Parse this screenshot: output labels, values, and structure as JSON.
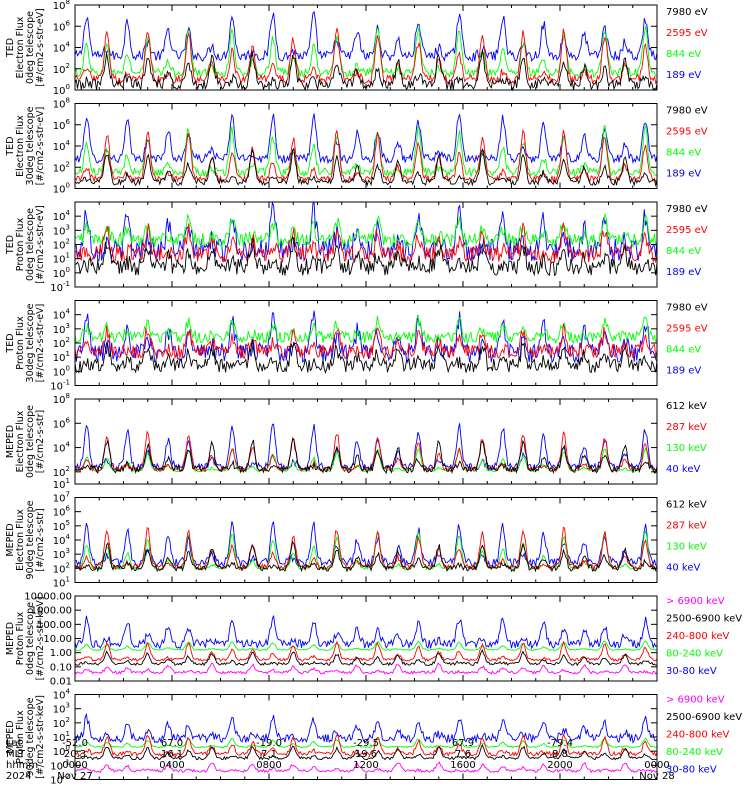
{
  "footer": {
    "row_labels": [
      "Lat",
      "MLT",
      "hhmm",
      "2024"
    ],
    "ticks": [
      {
        "lat": "-52.0",
        "mlt": "20.3",
        "hhmm": "0000",
        "date": "Nov 27"
      },
      {
        "lat": "67.0",
        "mlt": "16.1",
        "hhmm": "0400",
        "date": ""
      },
      {
        "lat": "-19.0",
        "mlt": "7.1",
        "hhmm": "0800",
        "date": ""
      },
      {
        "lat": "-29.5",
        "mlt": "19.6",
        "hhmm": "1200",
        "date": ""
      },
      {
        "lat": "67.9",
        "mlt": "7.6",
        "hhmm": "1600",
        "date": ""
      },
      {
        "lat": "-79.4",
        "mlt": "8.8",
        "hhmm": "2000",
        "date": ""
      },
      {
        "lat": "",
        "mlt": "",
        "hhmm": "0000",
        "date": "Nov 28"
      }
    ]
  },
  "colors": {
    "blue": "#0000ff",
    "red": "#ff0000",
    "green": "#00ff00",
    "black": "#000000",
    "magenta": "#ff00ff"
  },
  "chart_data": [
    {
      "type": "line",
      "ylabel": [
        "TED",
        "Electron Flux",
        "0deg telescope",
        "[#/cm2-s-str-eV]"
      ],
      "ylim_exp": [
        0,
        8
      ],
      "ticks_exp": [
        0,
        2,
        4,
        6,
        8
      ],
      "tick_format": "exp",
      "legend": [
        {
          "label": "7980 eV",
          "color": "#000000"
        },
        {
          "label": "2595 eV",
          "color": "#ff0000"
        },
        {
          "label": "844 eV",
          "color": "#00ff00"
        },
        {
          "label": "189 eV",
          "color": "#0000ff"
        }
      ],
      "series": [
        {
          "color": "#0000ff",
          "base": 3.2,
          "noise": 0.5,
          "peak": 4.0
        },
        {
          "color": "#00ff00",
          "base": 1.6,
          "noise": 0.4,
          "peak": 4.2
        },
        {
          "color": "#ff0000",
          "base": 1.0,
          "noise": 0.4,
          "peak": 4.6
        },
        {
          "color": "#000000",
          "base": 0.5,
          "noise": 0.5,
          "peak": 3.0
        }
      ]
    },
    {
      "type": "line",
      "ylabel": [
        "TED",
        "Electron Flux",
        "30deg telescope",
        "[#/cm2-s-str-eV]"
      ],
      "ylim_exp": [
        0,
        8
      ],
      "ticks_exp": [
        0,
        2,
        4,
        6,
        8
      ],
      "tick_format": "exp",
      "legend": [
        {
          "label": "7980 eV",
          "color": "#000000"
        },
        {
          "label": "2595 eV",
          "color": "#ff0000"
        },
        {
          "label": "844 eV",
          "color": "#00ff00"
        },
        {
          "label": "189 eV",
          "color": "#0000ff"
        }
      ],
      "series": [
        {
          "color": "#0000ff",
          "base": 2.8,
          "noise": 0.4,
          "peak": 4.2
        },
        {
          "color": "#00ff00",
          "base": 1.5,
          "noise": 0.4,
          "peak": 4.2
        },
        {
          "color": "#ff0000",
          "base": 0.9,
          "noise": 0.3,
          "peak": 4.5
        },
        {
          "color": "#000000",
          "base": 0.6,
          "noise": 0.3,
          "peak": 3.0
        }
      ]
    },
    {
      "type": "line",
      "ylabel": [
        "TED",
        "Proton Flux",
        "0deg telescope",
        "[#/cm2-s-str-eV]"
      ],
      "ylim_exp": [
        -1,
        5
      ],
      "ticks_exp": [
        -1,
        0,
        1,
        2,
        3,
        4
      ],
      "tick_format": "exp",
      "legend": [
        {
          "label": "7980 eV",
          "color": "#000000"
        },
        {
          "label": "2595 eV",
          "color": "#ff0000"
        },
        {
          "label": "844 eV",
          "color": "#00ff00"
        },
        {
          "label": "189 eV",
          "color": "#0000ff"
        }
      ],
      "series": [
        {
          "color": "#0000ff",
          "base": 1.6,
          "noise": 0.8,
          "peak": 2.8
        },
        {
          "color": "#00ff00",
          "base": 2.3,
          "noise": 0.5,
          "peak": 1.5
        },
        {
          "color": "#ff0000",
          "base": 1.3,
          "noise": 0.6,
          "peak": 1.8
        },
        {
          "color": "#000000",
          "base": 0.4,
          "noise": 0.6,
          "peak": 1.6
        }
      ]
    },
    {
      "type": "line",
      "ylabel": [
        "TED",
        "Proton Flux",
        "30deg telescope",
        "[#/cm2-s-str-eV]"
      ],
      "ylim_exp": [
        -1,
        5
      ],
      "ticks_exp": [
        -1,
        0,
        1,
        2,
        3,
        4
      ],
      "tick_format": "exp",
      "legend": [
        {
          "label": "7980 eV",
          "color": "#000000"
        },
        {
          "label": "2595 eV",
          "color": "#ff0000"
        },
        {
          "label": "844 eV",
          "color": "#00ff00"
        },
        {
          "label": "189 eV",
          "color": "#0000ff"
        }
      ],
      "series": [
        {
          "color": "#0000ff",
          "base": 1.3,
          "noise": 0.7,
          "peak": 2.5
        },
        {
          "color": "#00ff00",
          "base": 2.4,
          "noise": 0.4,
          "peak": 1.2
        },
        {
          "color": "#ff0000",
          "base": 1.4,
          "noise": 0.5,
          "peak": 1.6
        },
        {
          "color": "#000000",
          "base": 0.4,
          "noise": 0.5,
          "peak": 1.5
        }
      ]
    },
    {
      "type": "line",
      "ylabel": [
        "MEPED",
        "Electron Flux",
        "0deg telescope",
        "[#/cm2-s-str]"
      ],
      "ylim_exp": [
        1,
        8
      ],
      "ticks_exp": [
        1,
        2,
        4,
        6,
        8
      ],
      "tick_format": "exp",
      "legend": [
        {
          "label": "612 keV",
          "color": "#000000"
        },
        {
          "label": "287 keV",
          "color": "#ff0000"
        },
        {
          "label": "130 keV",
          "color": "#00ff00"
        },
        {
          "label": "40 keV",
          "color": "#0000ff"
        }
      ],
      "series": [
        {
          "color": "#0000ff",
          "base": 2.4,
          "noise": 0.3,
          "peak": 3.5
        },
        {
          "color": "#00ff00",
          "base": 2.1,
          "noise": 0.1,
          "peak": 1.8
        },
        {
          "color": "#ff0000",
          "base": 2.2,
          "noise": 0.2,
          "peak": 3.0
        },
        {
          "color": "#000000",
          "base": 2.2,
          "noise": 0.3,
          "peak": 2.5
        }
      ]
    },
    {
      "type": "line",
      "ylabel": [
        "MEPED",
        "Electron Flux",
        "90deg telescope",
        "[#/cm2-s-str]"
      ],
      "ylim_exp": [
        1,
        7
      ],
      "ticks_exp": [
        1,
        2,
        3,
        4,
        5,
        6,
        7
      ],
      "tick_format": "exp",
      "legend": [
        {
          "label": "612 keV",
          "color": "#000000"
        },
        {
          "label": "287 keV",
          "color": "#ff0000"
        },
        {
          "label": "130 keV",
          "color": "#00ff00"
        },
        {
          "label": "40 keV",
          "color": "#0000ff"
        }
      ],
      "series": [
        {
          "color": "#0000ff",
          "base": 2.4,
          "noise": 0.3,
          "peak": 2.8
        },
        {
          "color": "#00ff00",
          "base": 2.0,
          "noise": 0.1,
          "peak": 2.6
        },
        {
          "color": "#ff0000",
          "base": 2.1,
          "noise": 0.2,
          "peak": 2.7
        },
        {
          "color": "#000000",
          "base": 2.0,
          "noise": 0.2,
          "peak": 1.8
        }
      ]
    },
    {
      "type": "line",
      "ylabel": [
        "MEPED",
        "Proton Flux",
        "0deg telescope",
        "[#/cm2-s-str-keV]"
      ],
      "ylim_exp": [
        -2,
        4
      ],
      "ticks_exp": [
        -2,
        -1,
        0,
        1,
        2,
        3,
        4
      ],
      "tick_format": "decimal",
      "tick_labels": [
        "0.01",
        "0.10",
        "1.00",
        "10.00",
        "100.00",
        "1000.00",
        "10000.00"
      ],
      "legend": [
        {
          "label": "> 6900 keV",
          "color": "#ff00ff"
        },
        {
          "label": "2500-6900 keV",
          "color": "#000000"
        },
        {
          "label": "240-800 keV",
          "color": "#ff0000"
        },
        {
          "label": "80-240 keV",
          "color": "#00ff00"
        },
        {
          "label": "30-80 keV",
          "color": "#0000ff"
        }
      ],
      "series": [
        {
          "color": "#0000ff",
          "base": 0.6,
          "noise": 0.3,
          "peak": 1.9
        },
        {
          "color": "#00ff00",
          "base": 0.2,
          "noise": 0.05,
          "peak": 0.6
        },
        {
          "color": "#ff0000",
          "base": -0.5,
          "noise": 0.1,
          "peak": 1.2
        },
        {
          "color": "#000000",
          "base": -0.8,
          "noise": 0.1,
          "peak": 0.9
        },
        {
          "color": "#ff00ff",
          "base": -1.4,
          "noise": 0.1,
          "peak": 0.6
        }
      ]
    },
    {
      "type": "line",
      "ylabel": [
        "MEPED",
        "Proton Flux",
        "90deg telescope",
        "[#/cm2-s-str-keV]"
      ],
      "ylim_exp": [
        -2,
        4
      ],
      "ticks_exp": [
        -2,
        -1,
        0,
        1,
        2,
        3,
        4
      ],
      "tick_format": "exp",
      "legend": [
        {
          "label": "> 6900 keV",
          "color": "#ff00ff"
        },
        {
          "label": "2500-6900 keV",
          "color": "#000000"
        },
        {
          "label": "240-800 keV",
          "color": "#ff0000"
        },
        {
          "label": "80-240 keV",
          "color": "#00ff00"
        },
        {
          "label": "30-80 keV",
          "color": "#0000ff"
        }
      ],
      "series": [
        {
          "color": "#0000ff",
          "base": 0.9,
          "noise": 0.3,
          "peak": 1.5
        },
        {
          "color": "#00ff00",
          "base": 0.3,
          "noise": 0.05,
          "peak": 0.6
        },
        {
          "color": "#ff0000",
          "base": -0.2,
          "noise": 0.15,
          "peak": 1.3
        },
        {
          "color": "#000000",
          "base": -0.5,
          "noise": 0.1,
          "peak": 0.9
        },
        {
          "color": "#ff00ff",
          "base": -1.4,
          "noise": 0.1,
          "peak": 0.6
        }
      ]
    }
  ]
}
